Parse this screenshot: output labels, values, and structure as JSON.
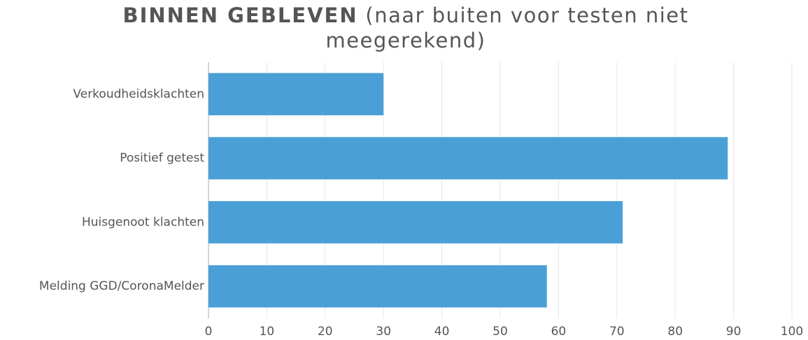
{
  "chart_data": {
    "type": "hbar",
    "title": "BINNEN GEBLEVEN",
    "subtitle": "(naar buiten voor testen niet meegerekend)",
    "categories": [
      "Verkoudheidsklachten",
      "Positief getest",
      "Huisgenoot klachten",
      "Melding GGD/CoronaMelder"
    ],
    "values": [
      30,
      89,
      71,
      58
    ],
    "color": "#4aa0d6",
    "xlim": [
      0,
      100
    ],
    "xticks": [
      0,
      10,
      20,
      30,
      40,
      50,
      60,
      70,
      80,
      90,
      100
    ],
    "grid": true
  }
}
